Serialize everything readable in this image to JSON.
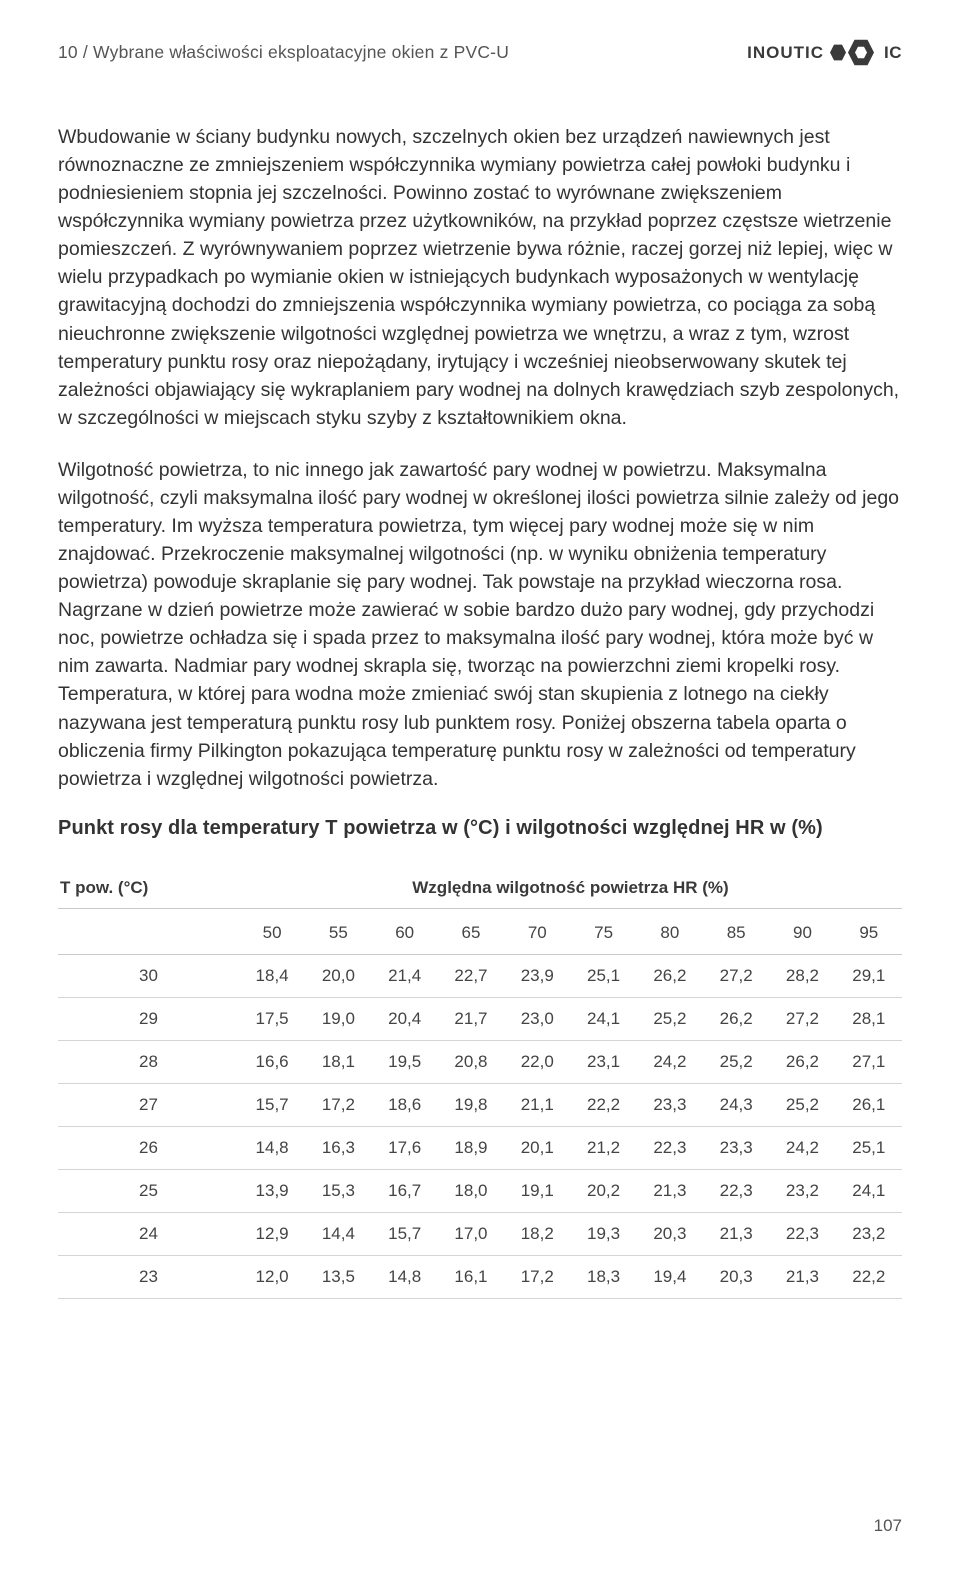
{
  "header": {
    "section_title": "10 / Wybrane właściwości eksploatacyjne okien z PVC-U",
    "brand_name": "INOUTIC",
    "brand_suffix": "IC"
  },
  "paragraphs": {
    "p1": "Wbudowanie w ściany budynku nowych, szczelnych okien bez urządzeń nawiewnych jest równoznaczne ze zmniejszeniem współczynnika wymiany powietrza całej powłoki budynku i podniesieniem stopnia jej szczelności. Powinno zostać to wyrównane zwiększeniem współczynnika wymiany powietrza przez użytkowników, na przykład poprzez częstsze wietrzenie pomieszczeń. Z wyrównywaniem poprzez wietrzenie bywa różnie, raczej gorzej niż lepiej, więc w wielu przypadkach po wymianie okien w istniejących budynkach wyposażonych w wentylację grawitacyjną dochodzi do zmniejszenia współczynnika wymiany powietrza, co pociąga za sobą nieuchronne zwiększenie wilgotności względnej powietrza we wnętrzu, a wraz z tym, wzrost temperatury punktu rosy oraz niepożądany, irytujący i wcześniej nieobserwowany skutek tej zależności objawiający się wykraplaniem pary wodnej na dolnych krawędziach szyb zespolonych, w szczególności w miejscach styku szyby z kształtownikiem okna.",
    "p2": "Wilgotność powietrza, to nic innego jak zawartość pary wodnej w powietrzu. Maksymalna wilgotność, czyli maksymalna ilość pary wodnej w określonej ilości powietrza silnie zależy od jego temperatury. Im wyższa temperatura powietrza, tym więcej pary wodnej może się w nim znajdować. Przekroczenie maksymalnej wilgotności (np. w wyniku obniżenia temperatury powietrza) powoduje skraplanie się pary wodnej. Tak powstaje na przykład wieczorna rosa. Nagrzane w dzień powietrze może zawierać w sobie bardzo dużo pary wodnej, gdy przychodzi noc, powietrze ochładza się i spada przez to maksymalna ilość pary wodnej, która może być w nim zawarta. Nadmiar pary wodnej skrapla się, tworząc na powierzchni ziemi kropelki rosy. Temperatura, w której para wodna może zmieniać swój stan skupienia z lotnego na ciekły nazywana jest temperaturą punktu rosy lub punktem rosy. Poniżej obszerna tabela oparta o obliczenia firmy Pilkington pokazująca temperaturę punktu rosy w zależności od temperatury powietrza i względnej wilgotności powietrza."
  },
  "table": {
    "title": "Punkt rosy dla temperatury T powietrza w (°C) i wilgotności względnej HR w (%)",
    "col_left_header": "T pow. (°C)",
    "col_span_header": "Względna wilgotność powietrza HR (%)",
    "humidity_cols": [
      "50",
      "55",
      "60",
      "65",
      "70",
      "75",
      "80",
      "85",
      "90",
      "95"
    ],
    "rows": [
      {
        "t": "30",
        "v": [
          "18,4",
          "20,0",
          "21,4",
          "22,7",
          "23,9",
          "25,1",
          "26,2",
          "27,2",
          "28,2",
          "29,1"
        ]
      },
      {
        "t": "29",
        "v": [
          "17,5",
          "19,0",
          "20,4",
          "21,7",
          "23,0",
          "24,1",
          "25,2",
          "26,2",
          "27,2",
          "28,1"
        ]
      },
      {
        "t": "28",
        "v": [
          "16,6",
          "18,1",
          "19,5",
          "20,8",
          "22,0",
          "23,1",
          "24,2",
          "25,2",
          "26,2",
          "27,1"
        ]
      },
      {
        "t": "27",
        "v": [
          "15,7",
          "17,2",
          "18,6",
          "19,8",
          "21,1",
          "22,2",
          "23,3",
          "24,3",
          "25,2",
          "26,1"
        ]
      },
      {
        "t": "26",
        "v": [
          "14,8",
          "16,3",
          "17,6",
          "18,9",
          "20,1",
          "21,2",
          "22,3",
          "23,3",
          "24,2",
          "25,1"
        ]
      },
      {
        "t": "25",
        "v": [
          "13,9",
          "15,3",
          "16,7",
          "18,0",
          "19,1",
          "20,2",
          "21,3",
          "22,3",
          "23,2",
          "24,1"
        ]
      },
      {
        "t": "24",
        "v": [
          "12,9",
          "14,4",
          "15,7",
          "17,0",
          "18,2",
          "19,3",
          "20,3",
          "21,3",
          "22,3",
          "23,2"
        ]
      },
      {
        "t": "23",
        "v": [
          "12,0",
          "13,5",
          "14,8",
          "16,1",
          "17,2",
          "18,3",
          "19,4",
          "20,3",
          "21,3",
          "22,2"
        ]
      }
    ],
    "font_size": 17,
    "border_color": "#d4d4d4",
    "header_border_color": "#c8c8c8",
    "text_color": "#444444"
  },
  "page_number": "107",
  "colors": {
    "background": "#ffffff",
    "body_text": "#333333",
    "header_text": "#555555",
    "brand_color": "#3a3a3a"
  }
}
